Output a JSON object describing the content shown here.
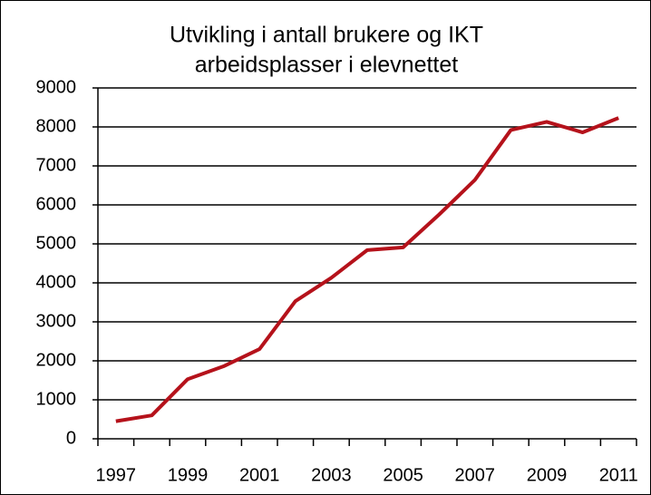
{
  "chart_data": {
    "type": "line",
    "title": [
      "Utvikling i antall brukere og IKT",
      "arbeidsplasser i elevnettet"
    ],
    "categories": [
      "1997",
      null,
      "1999",
      null,
      "2001",
      null,
      "2003",
      null,
      "2005",
      null,
      "2007",
      null,
      "2009",
      null,
      "2011"
    ],
    "series": [
      {
        "name": null,
        "color": "#b5121b",
        "values": [
          450,
          600,
          1530,
          1860,
          2300,
          3530,
          4130,
          4840,
          4910,
          5750,
          6640,
          7920,
          8130,
          7860,
          8230
        ]
      }
    ],
    "ylim": [
      0,
      9000
    ],
    "yticks": [
      0,
      1000,
      2000,
      3000,
      4000,
      5000,
      6000,
      7000,
      8000,
      9000
    ],
    "grid": true
  }
}
